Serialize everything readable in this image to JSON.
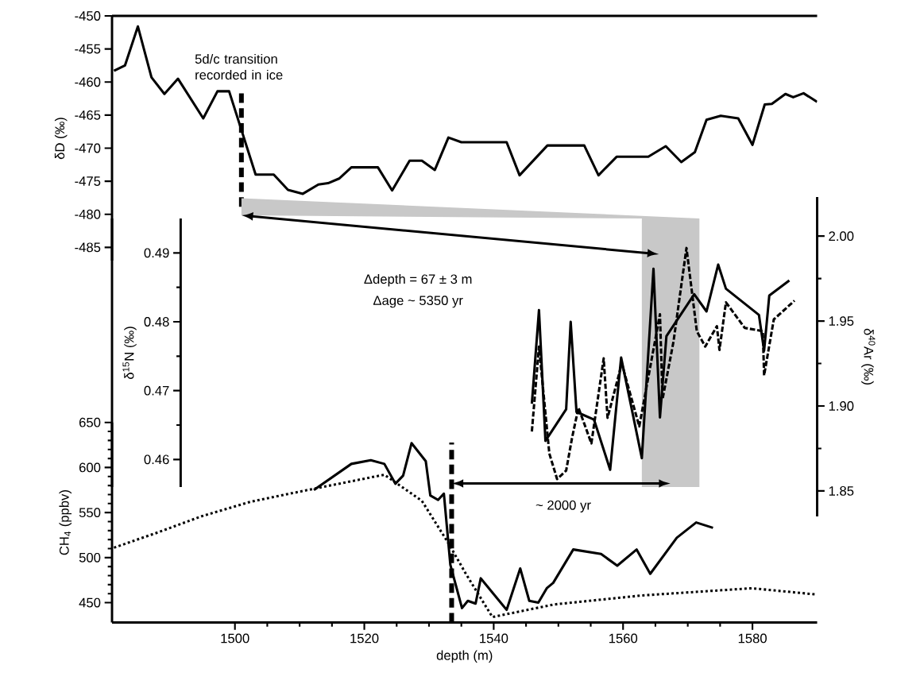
{
  "chart_data": [
    {
      "type": "line",
      "ylabel": "δD (‰)",
      "xlim": [
        1481,
        1590
      ],
      "ylim": [
        -487,
        -450
      ],
      "yticks": [
        -450,
        -455,
        -460,
        -465,
        -470,
        -475,
        -480,
        -485
      ],
      "tick_labels": "y",
      "x": [
        1481.3,
        1483.0,
        1485.0,
        1487.1,
        1489.1,
        1491.2,
        1495.1,
        1497.3,
        1499.1,
        1503.2,
        1506.0,
        1508.2,
        1510.5,
        1512.9,
        1514.4,
        1516.1,
        1518.0,
        1522.1,
        1524.3,
        1527.0,
        1528.9,
        1530.9,
        1533.0,
        1535.0,
        1542.0,
        1544.0,
        1548.3,
        1554.0,
        1556.2,
        1559.0,
        1563.9,
        1566.6,
        1569.0,
        1571.1,
        1572.9,
        1575.1,
        1577.8,
        1580.0,
        1581.9,
        1583.0,
        1585.1,
        1586.3,
        1587.9,
        1590.0
      ],
      "series": [
        {
          "color": "#000000",
          "line_style": "solid",
          "values": [
            -458.3,
            -457.5,
            -451.6,
            -459.3,
            -461.8,
            -459.5,
            -465.5,
            -461.4,
            -461.4,
            -474.0,
            -474.0,
            -476.3,
            -476.9,
            -475.5,
            -475.3,
            -474.6,
            -472.9,
            -472.9,
            -476.4,
            -471.9,
            -471.9,
            -473.3,
            -468.4,
            -469.1,
            -469.1,
            -474.1,
            -469.6,
            -469.6,
            -474.1,
            -471.3,
            -471.3,
            -469.7,
            -472.1,
            -470.6,
            -465.7,
            -465.1,
            -465.5,
            -469.5,
            -463.4,
            -463.3,
            -461.8,
            -462.3,
            -461.7,
            -463.0
          ]
        }
      ],
      "ref_lines": [
        {
          "axis": "x",
          "value": 1501,
          "label": "5d/c transition recorded in ice",
          "line_style": "dashed",
          "color": "#000000"
        }
      ]
    },
    {
      "type": "line",
      "ylabel": "δ$^{15}$N (‰)",
      "y2label": "δ$^{40}$Ar (‰)",
      "xlim": [
        1481,
        1590
      ],
      "ylim": [
        0.456,
        0.495
      ],
      "yticks": [
        0.46,
        0.47,
        0.48,
        0.49
      ],
      "y2lim": [
        1.835,
        2.023
      ],
      "y2ticks": [
        1.85,
        {
          "value": 1.9,
          "label": "1.90"
        },
        1.95,
        {
          "value": 2,
          "label": "2.00"
        }
      ],
      "tick_labels": "y",
      "bands": [
        {
          "axis": "x",
          "from": 1562.9,
          "to": 1571.8,
          "color": "#c8c8c8"
        }
      ],
      "annotations": [
        "Δdepth = 67 ± 3 m",
        "Δage ~ 5350 yr"
      ],
      "series": [
        {
          "color": "#000000",
          "line_style": "solid",
          "x": [
            1545.9,
            1547.0,
            1548.0,
            1551.2,
            1551.9,
            1552.8,
            1555.5,
            1558.0,
            1559.7,
            1562.9,
            1564.7,
            1565.7,
            1566.7,
            1571.0,
            1572.9,
            1574.7,
            1575.9,
            1581.0,
            1581.8,
            1582.6,
            1585.7
          ],
          "values": [
            0.4681,
            0.4817,
            0.4627,
            0.4673,
            0.48,
            0.4669,
            0.4658,
            0.4585,
            0.4748,
            0.4602,
            0.4877,
            0.4661,
            0.4779,
            0.484,
            0.4815,
            0.4883,
            0.4848,
            0.481,
            0.4758,
            0.4838,
            0.486
          ]
        },
        {
          "color": "#000000",
          "line_style": "dashed",
          "axis": "y2",
          "x": [
            1545.9,
            1547.0,
            1548.6,
            1549.8,
            1551.2,
            1552.1,
            1553.1,
            1555.1,
            1557.0,
            1557.6,
            1559.8,
            1562.5,
            1565.7,
            1566.1,
            1567.8,
            1569.8,
            1571.4,
            1572.7,
            1574.5,
            1574.9,
            1575.9,
            1578.8,
            1581.6,
            1581.8,
            1583.3,
            1586.5
          ],
          "values": [
            1.885,
            1.935,
            1.872,
            1.857,
            1.862,
            1.881,
            1.899,
            1.878,
            1.928,
            1.893,
            1.925,
            1.888,
            1.954,
            1.904,
            1.938,
            1.993,
            1.944,
            1.935,
            1.947,
            1.933,
            1.961,
            1.946,
            1.944,
            1.918,
            1.951,
            1.962
          ]
        }
      ]
    },
    {
      "type": "line",
      "ylabel": "CH$_{4}$ (ppbv)",
      "xlabel": "depth (m)",
      "xlim": [
        1481,
        1590
      ],
      "ylim": [
        428,
        650
      ],
      "xticks": [
        1500,
        1520,
        1540,
        1560,
        1580
      ],
      "yticks": [
        450,
        500,
        550,
        600,
        650
      ],
      "ref_lines": [
        {
          "axis": "x",
          "value": 1533.5,
          "line_style": "dashed",
          "color": "#000000"
        }
      ],
      "annotations": [
        "~ 2000 yr"
      ],
      "series": [
        {
          "color": "#000000",
          "line_style": "solid",
          "x": [
            1512.2,
            1518.0,
            1521.0,
            1523.1,
            1524.8,
            1526.0,
            1527.3,
            1529.5,
            1530.2,
            1531.4,
            1532.3,
            1533.3,
            1535.1,
            1536.0,
            1537.2,
            1538.0,
            1542.0,
            1544.1,
            1545.5,
            1546.9,
            1548.2,
            1549.2,
            1552.3,
            1556.6,
            1559.1,
            1562.1,
            1564.2,
            1568.3,
            1571.3,
            1573.9
          ],
          "values": [
            575,
            604,
            608,
            604,
            582,
            591,
            627,
            607,
            569,
            564,
            571,
            492,
            444,
            452,
            449,
            477,
            442,
            488,
            452,
            450,
            466,
            472,
            509,
            504,
            491,
            509,
            482,
            522,
            539,
            533
          ]
        },
        {
          "color": "#000000",
          "line_style": "dotted",
          "x": [
            1481.3,
            1488.1,
            1494.9,
            1502.4,
            1511.9,
            1523.1,
            1528.9,
            1533.0,
            1535.7,
            1539.8,
            1549.3,
            1562.9,
            1579.9,
            1590.0
          ],
          "values": [
            511,
            528,
            546,
            562,
            576,
            592,
            563,
            516,
            482,
            434,
            448,
            458,
            466,
            459
          ]
        }
      ]
    }
  ]
}
